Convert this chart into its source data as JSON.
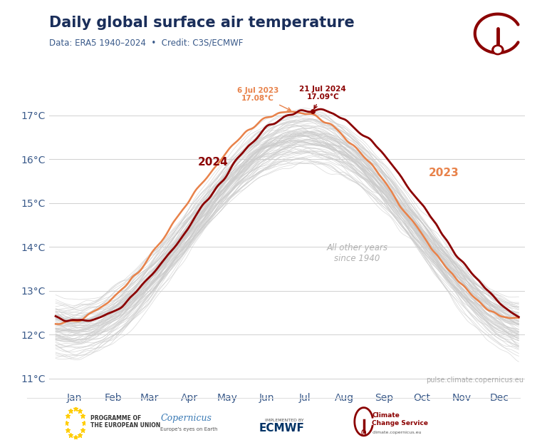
{
  "title": "Daily global surface air temperature",
  "subtitle": "Data: ERA5 1940–2024  •  Credit: C3S/ECMWF",
  "ylabel_ticks": [
    "11°C",
    "12°C",
    "13°C",
    "14°C",
    "15°C",
    "16°C",
    "17°C"
  ],
  "ytick_vals": [
    11,
    12,
    13,
    14,
    15,
    16,
    17
  ],
  "months": [
    "Jan",
    "Feb",
    "Mar",
    "Apr",
    "May",
    "Jun",
    "Jul",
    "Aug",
    "Sep",
    "Oct",
    "Nov",
    "Dec"
  ],
  "title_color": "#1a2e5a",
  "subtitle_color": "#3a5a8a",
  "axis_color": "#3a5a8a",
  "grid_color": "#d0d0d0",
  "color_2024": "#8b0000",
  "color_2023": "#e8824a",
  "color_other": "#cccccc",
  "annotation_color_2023": "#e8824a",
  "annotation_color_2024": "#8b0000",
  "peak_2023_day": 187,
  "peak_2023_val": 17.08,
  "peak_2024_day": 202,
  "peak_2024_val": 17.09,
  "website_text": "pulse.climate.copernicus.eu",
  "label_2024": "2024",
  "label_2023": "2023",
  "other_label": "All other years\nsince 1940",
  "ylim": [
    10.8,
    17.6
  ],
  "background_color": "#ffffff",
  "mean_base": 14.3,
  "amplitude_base": 2.2,
  "peak_day": 196
}
